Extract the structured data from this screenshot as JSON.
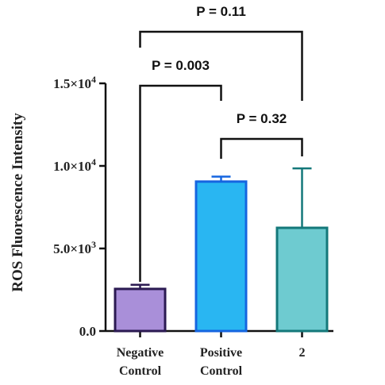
{
  "chart_data": {
    "type": "bar",
    "ylabel": "ROS Fluorescence Intensity",
    "xlabel": "",
    "ylim": [
      0,
      15000
    ],
    "yticks": [
      {
        "value": 0,
        "base": "0.0",
        "exp": ""
      },
      {
        "value": 5000,
        "base": "5.0×10",
        "exp": "3"
      },
      {
        "value": 10000,
        "base": "1.0×10",
        "exp": "4"
      },
      {
        "value": 15000,
        "base": "1.5×10",
        "exp": "4"
      }
    ],
    "categories": [
      {
        "line1": "Negative",
        "line2": "Control"
      },
      {
        "line1": "Positive",
        "line2": "Control"
      },
      {
        "line1": "2",
        "line2": ""
      }
    ],
    "values": [
      2550,
      9050,
      6250
    ],
    "errors": [
      250,
      300,
      3600
    ],
    "colors": {
      "fill": [
        "#a98fd9",
        "#29b6f2",
        "#6ecbd0"
      ],
      "stroke": [
        "#2b1a52",
        "#1565e0",
        "#14787a"
      ]
    },
    "comparisons": [
      {
        "from": 0,
        "to": 1,
        "label": "P = 0.003"
      },
      {
        "from": 1,
        "to": 2,
        "label": "P = 0.32"
      },
      {
        "from": 0,
        "to": 2,
        "label": "P = 0.11"
      }
    ]
  }
}
